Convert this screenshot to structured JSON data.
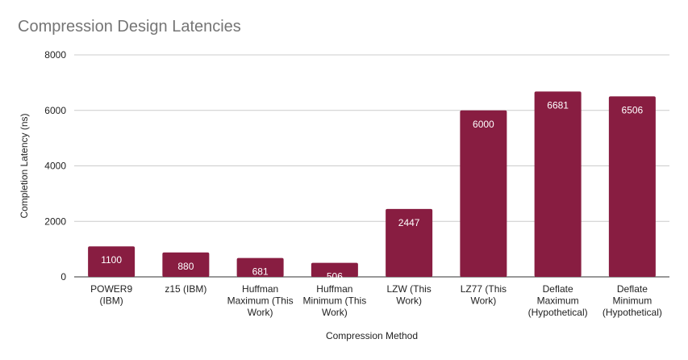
{
  "chart_data": {
    "type": "bar",
    "title": "Compression Design Latencies",
    "xlabel": "Compression Method",
    "ylabel": "Completion Latency (ns)",
    "categories": [
      [
        "POWER9",
        "(IBM)"
      ],
      [
        "z15 (IBM)"
      ],
      [
        "Huffman",
        "Maximum (This",
        "Work)"
      ],
      [
        "Huffman",
        "Minimum (This",
        "Work)"
      ],
      [
        "LZW (This",
        "Work)"
      ],
      [
        "LZ77 (This",
        "Work)"
      ],
      [
        "Deflate",
        "Maximum",
        "(Hypothetical)"
      ],
      [
        "Deflate",
        "Minimum",
        "(Hypothetical)"
      ]
    ],
    "values": [
      1100,
      880,
      681,
      506,
      2447,
      6000,
      6681,
      6506
    ],
    "ylim": [
      0,
      8000
    ],
    "yticks": [
      0,
      2000,
      4000,
      6000,
      8000
    ],
    "grid": true,
    "legend": "none",
    "bar_color": "#881d41",
    "grid_color": "#cccccc"
  }
}
